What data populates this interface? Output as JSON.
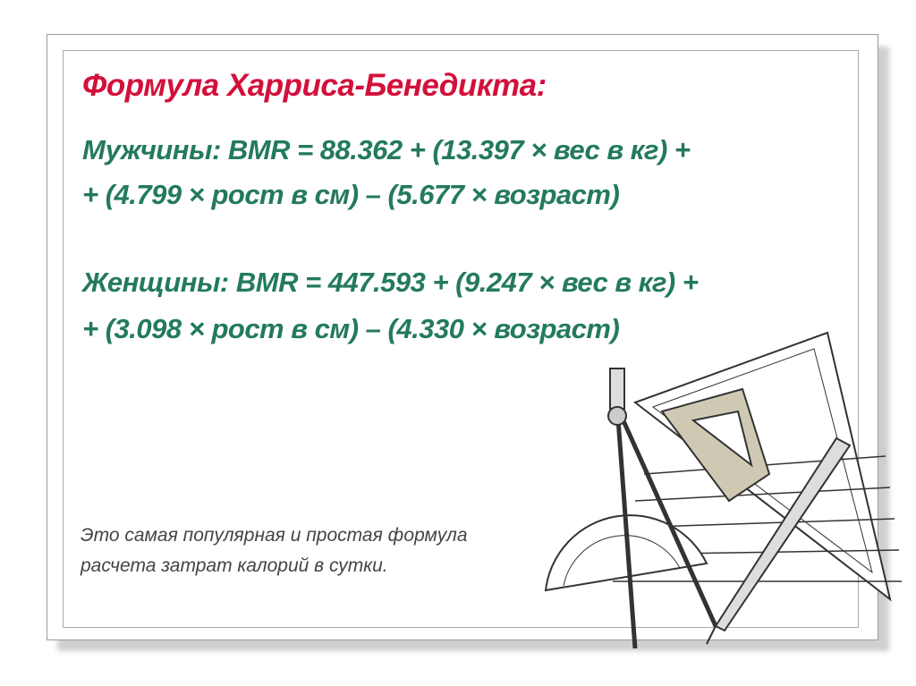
{
  "slide": {
    "title": "Формула Харриса-Бенедикта:",
    "men": {
      "line1": "Мужчины: BMR = 88.362 + (13.397 × вес в кг) +",
      "line2": "+ (4.799 × рост в см) – (5.677 × возраст)"
    },
    "women": {
      "line1": "Женщины: BMR = 447.593 + (9.247 × вес в кг) +",
      "line2": "+ (3.098 × рост в см) – (4.330 × возраст)"
    },
    "caption": {
      "line1": "Это самая популярная и простая формула",
      "line2": "расчета затрат калорий в сутки."
    },
    "colors": {
      "title": "#d3103b",
      "formula": "#237a5c",
      "caption": "#444444"
    },
    "illustration": "drafting-tools"
  }
}
